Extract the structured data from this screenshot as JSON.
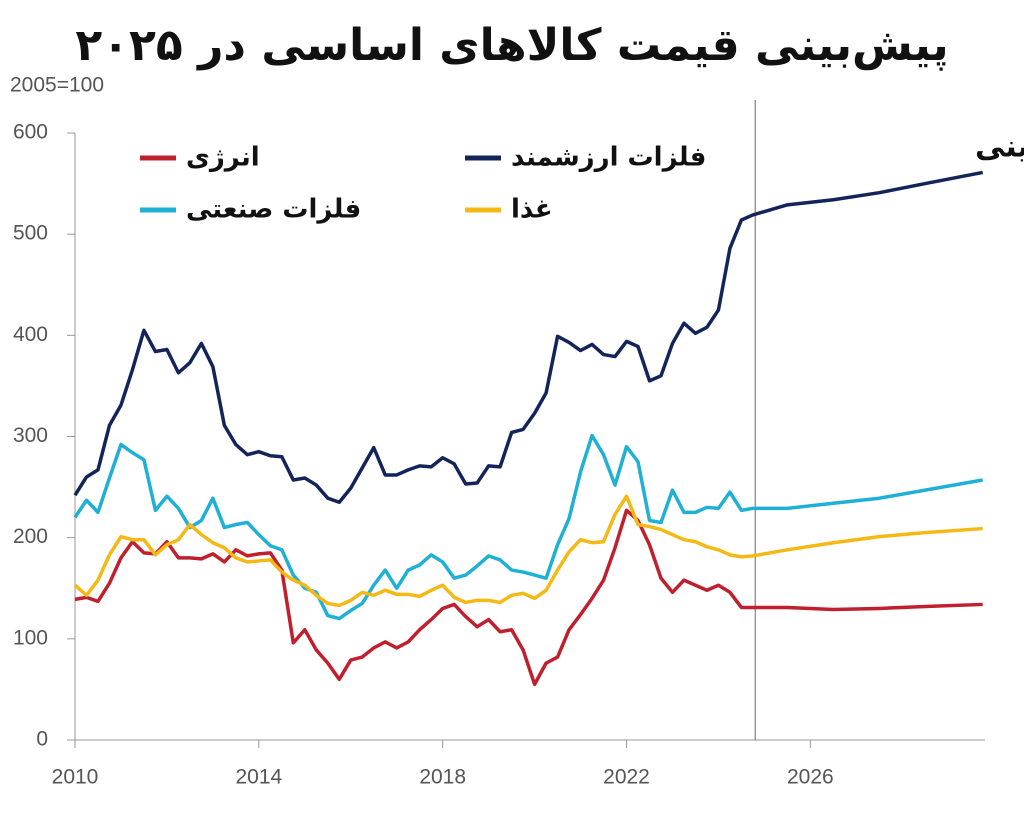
{
  "chart_data": {
    "type": "line",
    "title": "پیش‌بینی قیمت کالاهای اساسی در ۲۰۲۵",
    "y_label": "2005=100",
    "annotation": "پیش‌بینی",
    "forecast_start": 2024.8,
    "x": [
      2010,
      2010.25,
      2010.5,
      2010.75,
      2011,
      2011.25,
      2011.5,
      2011.75,
      2012,
      2012.25,
      2012.5,
      2012.75,
      2013,
      2013.25,
      2013.5,
      2013.75,
      2014,
      2014.25,
      2014.5,
      2014.75,
      2015,
      2015.25,
      2015.5,
      2015.75,
      2016,
      2016.25,
      2016.5,
      2016.75,
      2017,
      2017.25,
      2017.5,
      2017.75,
      2018,
      2018.25,
      2018.5,
      2018.75,
      2019,
      2019.25,
      2019.5,
      2019.75,
      2020,
      2020.25,
      2020.5,
      2020.75,
      2021,
      2021.25,
      2021.5,
      2021.75,
      2022,
      2022.25,
      2022.5,
      2022.75,
      2023,
      2023.25,
      2023.5,
      2023.75,
      2024,
      2024.25,
      2024.5,
      2024.75,
      2025.5,
      2026.5,
      2027.5,
      2028.5,
      2029.75
    ],
    "series": [
      {
        "name": "انرژی",
        "color": "#c0202e",
        "values": [
          139,
          141,
          137,
          155,
          180,
          196,
          185,
          184,
          196,
          180,
          180,
          179,
          184,
          176,
          188,
          182,
          184,
          185,
          168,
          96,
          109,
          89,
          76,
          60,
          79,
          82,
          91,
          97,
          91,
          97,
          109,
          119,
          130,
          134,
          122,
          112,
          119,
          107,
          109,
          89,
          55,
          76,
          82,
          109,
          124,
          140,
          158,
          190,
          227,
          217,
          193,
          160,
          146,
          158,
          153,
          148,
          153,
          146,
          131,
          131,
          131,
          129,
          130,
          132,
          134
        ]
      },
      {
        "name": "فلزات ارزشمند",
        "color": "#13245a",
        "values": [
          242,
          260,
          267,
          311,
          331,
          366,
          405,
          384,
          386,
          363,
          373,
          392,
          369,
          311,
          292,
          282,
          285,
          281,
          280,
          257,
          259,
          252,
          239,
          235,
          249,
          269,
          289,
          262,
          262,
          267,
          271,
          270,
          279,
          273,
          253,
          254,
          271,
          270,
          304,
          307,
          323,
          343,
          399,
          393,
          385,
          391,
          381,
          379,
          394,
          389,
          355,
          360,
          392,
          412,
          402,
          408,
          425,
          486,
          514,
          519,
          529,
          534,
          541,
          550,
          561
        ]
      },
      {
        "name": "فلزات صنعتی",
        "color": "#1fb0d6",
        "values": [
          220,
          237,
          225,
          259,
          292,
          284,
          277,
          227,
          241,
          229,
          210,
          217,
          239,
          210,
          213,
          215,
          203,
          192,
          188,
          163,
          150,
          146,
          123,
          120,
          128,
          135,
          153,
          168,
          150,
          168,
          173,
          183,
          176,
          160,
          163,
          172,
          182,
          178,
          168,
          166,
          163,
          160,
          193,
          219,
          265,
          301,
          282,
          252,
          290,
          275,
          217,
          215,
          247,
          225,
          225,
          230,
          229,
          245,
          227,
          229,
          229,
          234,
          239,
          247,
          257
        ]
      },
      {
        "name": "غذا",
        "color": "#f4b915",
        "values": [
          153,
          143,
          158,
          183,
          201,
          198,
          198,
          183,
          193,
          198,
          213,
          203,
          195,
          190,
          180,
          176,
          177,
          178,
          166,
          158,
          153,
          143,
          135,
          133,
          138,
          146,
          143,
          148,
          144,
          144,
          142,
          148,
          153,
          141,
          136,
          138,
          138,
          136,
          143,
          145,
          140,
          148,
          168,
          186,
          198,
          195,
          196,
          223,
          241,
          213,
          211,
          208,
          203,
          198,
          196,
          191,
          188,
          183,
          181,
          182,
          188,
          195,
          201,
          205,
          209
        ]
      }
    ],
    "xlim": [
      2010,
      2029.8
    ],
    "xticks": [
      2010,
      2014,
      2018,
      2022,
      2026
    ],
    "ylim": [
      0,
      600
    ],
    "yticks": [
      0,
      100,
      200,
      300,
      400,
      500,
      600
    ]
  }
}
